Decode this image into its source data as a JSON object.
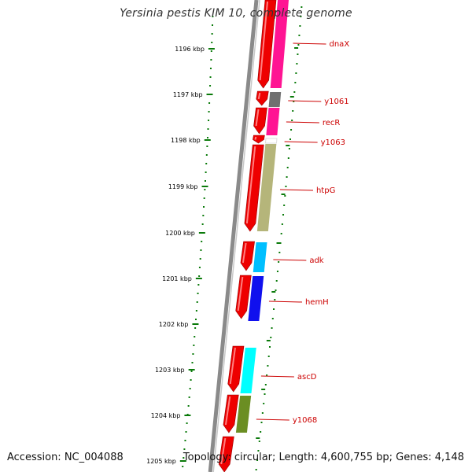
{
  "title": "Yersinia pestis KIM 10, complete genome",
  "footer": {
    "accession": "Accession: NC_004088",
    "topology": "Topology: circular; Length: 4,600,755 bp; Genes: 4,148"
  },
  "colors": {
    "backbone": "#8a8a8a",
    "kbp_ticks": "#0a7a0a",
    "gene_strand": "#ee0000",
    "label_text": "#cc0000",
    "label_line": "#cc0000"
  },
  "ruler_labels": [
    "1196 kbp",
    "1197 kbp",
    "1198 kbp",
    "1199 kbp",
    "1200 kbp",
    "1201 kbp",
    "1202 kbp",
    "1203 kbp",
    "1204 kbp",
    "1205 kbp"
  ],
  "genes": [
    {
      "name": "dnaX",
      "color": "#ff1493"
    },
    {
      "name": "y1061",
      "color": "#707070"
    },
    {
      "name": "recR",
      "color": "#ff1493"
    },
    {
      "name": "y1063",
      "color": "#ffffff"
    },
    {
      "name": "htpG",
      "color": "#b5b57a"
    },
    {
      "name": "adk",
      "color": "#00bfff"
    },
    {
      "name": "hemH",
      "color": "#1010ee"
    },
    {
      "name": "ascD",
      "color": "#00ffff"
    },
    {
      "name": "y1068",
      "color": "#6b8e23"
    }
  ]
}
